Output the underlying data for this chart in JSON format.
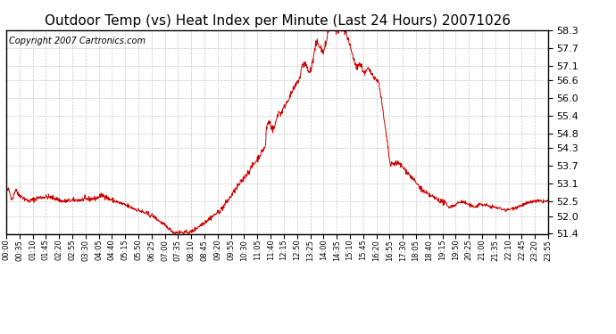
{
  "title": "Outdoor Temp (vs) Heat Index per Minute (Last 24 Hours) 20071026",
  "copyright": "Copyright 2007 Cartronics.com",
  "line_color": "#cc0000",
  "bg_color": "#ffffff",
  "plot_bg_color": "#ffffff",
  "grid_color": "#c0c0c0",
  "ylim": [
    51.4,
    58.3
  ],
  "yticks": [
    51.4,
    52.0,
    52.5,
    53.1,
    53.7,
    54.3,
    54.8,
    55.4,
    56.0,
    56.6,
    57.1,
    57.7,
    58.3
  ],
  "xtick_labels": [
    "00:00",
    "00:35",
    "01:10",
    "01:45",
    "02:20",
    "02:55",
    "03:30",
    "04:05",
    "04:40",
    "05:15",
    "05:50",
    "06:25",
    "07:00",
    "07:35",
    "08:10",
    "08:45",
    "09:20",
    "09:55",
    "10:30",
    "11:05",
    "11:40",
    "12:15",
    "12:50",
    "13:25",
    "14:00",
    "14:35",
    "15:10",
    "15:45",
    "16:20",
    "16:55",
    "17:30",
    "18:05",
    "18:40",
    "19:15",
    "19:50",
    "20:25",
    "21:00",
    "21:35",
    "22:10",
    "22:45",
    "23:20",
    "23:55"
  ],
  "title_fontsize": 11,
  "copyright_fontsize": 7,
  "ytick_fontsize": 8,
  "xtick_fontsize": 6
}
